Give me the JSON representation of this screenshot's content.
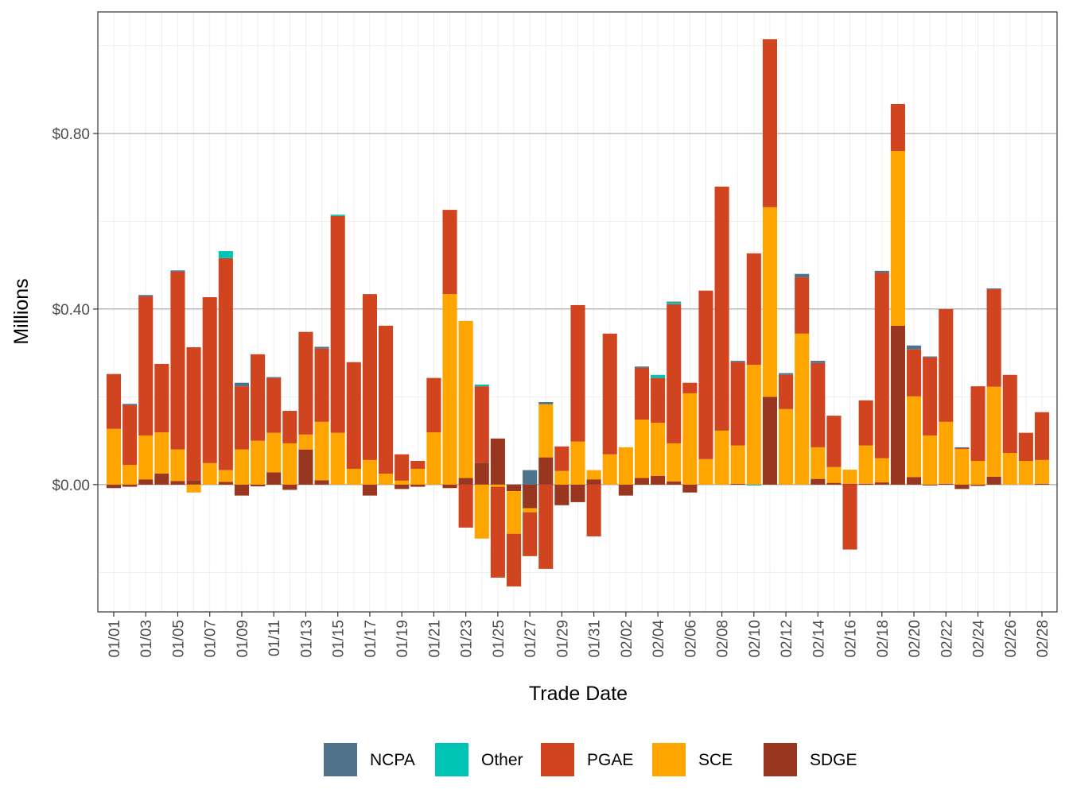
{
  "chart_data": {
    "type": "stacked_bar",
    "x_label": "Trade Date",
    "y_label": "Millions",
    "categories": [
      "01/01",
      null,
      "01/03",
      null,
      "01/05",
      null,
      "01/07",
      null,
      "01/09",
      null,
      "01/11",
      null,
      "01/13",
      null,
      "01/15",
      null,
      "01/17",
      null,
      "01/19",
      null,
      "01/21",
      null,
      "01/23",
      null,
      "01/25",
      null,
      "01/27",
      null,
      "01/29",
      null,
      "01/31",
      null,
      "02/02",
      null,
      "02/04",
      null,
      "02/06",
      null,
      "02/08",
      null,
      "02/10",
      null,
      "02/12",
      null,
      "02/14",
      null,
      "02/16",
      null,
      "02/18",
      null,
      "02/20",
      null,
      "02/22",
      null,
      "02/24",
      null,
      "02/26",
      null,
      "02/28"
    ],
    "series": [
      {
        "name": "NCPA",
        "color": "#4e738a",
        "values": [
          0,
          0.003,
          0.003,
          0,
          0.003,
          0,
          0,
          0,
          0.008,
          0,
          0.002,
          0,
          0,
          0.004,
          0,
          0,
          0,
          0,
          0,
          0,
          0,
          0,
          0,
          0,
          0,
          0,
          0.033,
          0.005,
          0,
          0,
          0,
          0,
          0,
          0.003,
          0,
          0.002,
          0,
          0,
          0,
          0.003,
          0,
          0,
          0.004,
          0.008,
          0.005,
          0,
          0,
          0,
          0.004,
          0,
          0.009,
          0.002,
          0,
          0.002,
          0,
          0.002,
          0,
          0,
          0
        ]
      },
      {
        "name": "Other",
        "color": "#00c5b5",
        "values": [
          0,
          0,
          0,
          0,
          0,
          0,
          0,
          0.016,
          0,
          0,
          0,
          0,
          0,
          0,
          0.003,
          0,
          0,
          0,
          0,
          0,
          0,
          0,
          0,
          0.004,
          0,
          0,
          0,
          0,
          0,
          0,
          0,
          0,
          0,
          0,
          0.007,
          0.004,
          0,
          0,
          0,
          0,
          -0.002,
          0,
          0,
          0,
          0,
          0,
          0,
          0,
          0,
          0,
          0,
          0,
          0,
          0,
          0,
          0,
          0,
          0,
          0
        ]
      },
      {
        "name": "PGAE",
        "color": "#d04520",
        "values": [
          0.125,
          0.136,
          0.317,
          0.156,
          0.405,
          0.303,
          0.378,
          0.483,
          0.144,
          0.197,
          0.125,
          0.074,
          0.234,
          0.167,
          0.494,
          0.243,
          0.378,
          0.337,
          0.06,
          0.018,
          0.124,
          0.192,
          -0.098,
          0.174,
          -0.207,
          -0.12,
          -0.1,
          -0.192,
          0.056,
          0.311,
          -0.118,
          0.275,
          0,
          0.118,
          0.102,
          0.317,
          0.024,
          0.384,
          0.556,
          0.19,
          0.254,
          0.383,
          0.078,
          0.128,
          0.192,
          0.117,
          -0.148,
          0.103,
          0.423,
          0.107,
          0.107,
          0.178,
          0.257,
          0.002,
          0.17,
          0.222,
          0.178,
          0.064,
          0.109
        ]
      },
      {
        "name": "SCE",
        "color": "#ffa500",
        "values": [
          0.127,
          0.045,
          0.1,
          0.094,
          0.072,
          -0.018,
          0.049,
          0.027,
          0.08,
          0.1,
          0.09,
          0.094,
          0.034,
          0.133,
          0.118,
          0.036,
          0.056,
          0.025,
          0.009,
          0.036,
          0.119,
          0.434,
          0.358,
          -0.123,
          -0.005,
          -0.097,
          -0.009,
          0.121,
          0.031,
          0.098,
          0.021,
          0.069,
          0.085,
          0.133,
          0.121,
          0.087,
          0.208,
          0.058,
          0.123,
          0.087,
          0.273,
          0.432,
          0.172,
          0.344,
          0.072,
          0.036,
          0.032,
          0.087,
          0.055,
          0.398,
          0.184,
          0.112,
          0.141,
          0.081,
          0.054,
          0.205,
          0.072,
          0.054,
          0.054
        ]
      },
      {
        "name": "SDGE",
        "color": "#98361f",
        "values": [
          -0.008,
          -0.005,
          0.012,
          0.025,
          0.008,
          0.01,
          0,
          0.006,
          -0.025,
          -0.004,
          0.028,
          -0.012,
          0.08,
          0.01,
          0,
          0,
          -0.025,
          0,
          -0.01,
          -0.005,
          0,
          -0.008,
          0.015,
          0.05,
          0.105,
          -0.015,
          -0.054,
          0.062,
          -0.047,
          -0.04,
          0.012,
          0,
          -0.025,
          0.015,
          0.02,
          0.007,
          -0.018,
          0,
          0,
          0.002,
          0,
          0.2,
          0,
          0,
          0.013,
          0.004,
          0.002,
          0.002,
          0.005,
          0.362,
          0.017,
          -0.002,
          0.002,
          -0.01,
          -0.003,
          0.018,
          0,
          0,
          0.002
        ]
      }
    ],
    "ylim": [
      -0.29,
      1.077
    ],
    "yticks": [
      {
        "value": 0,
        "label": "$0.00"
      },
      {
        "value": 0.4,
        "label": "$0.40"
      },
      {
        "value": 0.8,
        "label": "$0.80"
      }
    ],
    "y_minor_gridlines": [
      -0.2,
      0.2,
      0.6,
      1.0
    ],
    "grid": true,
    "legend": "bottom"
  }
}
